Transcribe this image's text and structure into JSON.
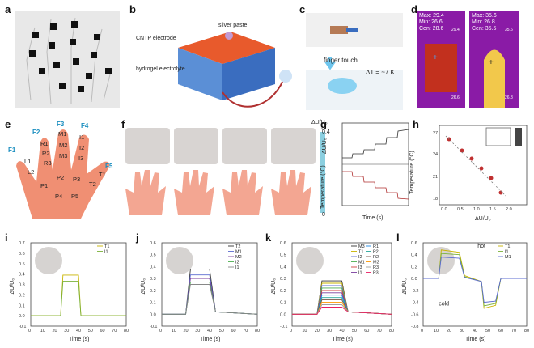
{
  "panels": [
    "a",
    "b",
    "c",
    "d",
    "e",
    "f",
    "g",
    "h",
    "i",
    "j",
    "k",
    "l"
  ],
  "b": {
    "label1": "silver paste",
    "label2": "CNTP electrode",
    "label3": "hydrogel electrolyte"
  },
  "c": {
    "label1": "finger touch",
    "label2": "ΔT = ~7 K"
  },
  "d": {
    "left": {
      "max": "Max: 29.4",
      "min": "Min: 26.6",
      "cen": "Cen: 28.6",
      "scale_top": "29.4",
      "scale_bot": "26.6"
    },
    "right": {
      "max": "Max: 35.6",
      "min": "Min: 26.8",
      "cen": "Cen: 35.5",
      "scale_top": "35.6",
      "scale_bot": "26.8"
    }
  },
  "e": {
    "fingers": [
      "F1",
      "F2",
      "F3",
      "F4",
      "F5"
    ],
    "points": [
      "R1",
      "R2",
      "R3",
      "M1",
      "M2",
      "M3",
      "I1",
      "I2",
      "I3",
      "L1",
      "L2",
      "P1",
      "P2",
      "P3",
      "P4",
      "P5",
      "T1",
      "T2"
    ]
  },
  "f": {
    "colorbar_title": "ΔU/U₀",
    "colorbar_top": "0.4",
    "colorbar_bot": "0"
  },
  "g": {
    "ylabel_top": "ΔU/U₀",
    "ylabel_bot": "Temperature (°C)",
    "xlabel": "Time (s)",
    "xticks": [
      "0",
      "500",
      "1000",
      "1500",
      "2000",
      "2500",
      "3000"
    ]
  },
  "h": {
    "ylabel": "Temperature (°C)",
    "xlabel": "ΔU/U₀",
    "yticks": [
      "27",
      "24",
      "21",
      "18"
    ],
    "xticks": [
      "0.0",
      "0.5",
      "1.0",
      "1.5",
      "2.0"
    ]
  },
  "chart_data": [
    {
      "type": "line",
      "panel": "i",
      "xlabel": "Time (s)",
      "ylabel": "ΔU/U₀",
      "xlim": [
        0,
        80
      ],
      "ylim": [
        -0.1,
        0.7
      ],
      "xticks": [
        "0",
        "10",
        "20",
        "30",
        "40",
        "50",
        "60",
        "70",
        "80"
      ],
      "yticks": [
        "-0.1",
        "0.0",
        "0.1",
        "0.2",
        "0.3",
        "0.4",
        "0.5",
        "0.6",
        "0.7"
      ],
      "series": [
        {
          "name": "T1",
          "color": "#c9b400",
          "x": [
            0,
            25,
            27,
            40,
            42,
            80
          ],
          "y": [
            0,
            0,
            0.39,
            0.39,
            0,
            0
          ]
        },
        {
          "name": "I1",
          "color": "#7bb23a",
          "x": [
            0,
            25,
            27,
            40,
            42,
            80
          ],
          "y": [
            0,
            0,
            0.33,
            0.33,
            0,
            0
          ]
        }
      ]
    },
    {
      "type": "line",
      "panel": "j",
      "xlabel": "Time (s)",
      "ylabel": "ΔU/U₀",
      "xlim": [
        0,
        80
      ],
      "ylim": [
        -0.1,
        0.6
      ],
      "xticks": [
        "0",
        "10",
        "20",
        "30",
        "40",
        "50",
        "60",
        "70",
        "80"
      ],
      "yticks": [
        "-0.1",
        "0.0",
        "0.1",
        "0.2",
        "0.3",
        "0.4",
        "0.5",
        "0.6"
      ],
      "series": [
        {
          "name": "T2",
          "color": "#333333",
          "x": [
            0,
            20,
            24,
            40,
            45,
            80
          ],
          "y": [
            0,
            0,
            0.38,
            0.38,
            0.02,
            0
          ]
        },
        {
          "name": "M1",
          "color": "#5b6bd0",
          "x": [
            0,
            20,
            24,
            40,
            45,
            80
          ],
          "y": [
            0,
            0,
            0.33,
            0.33,
            0.02,
            0
          ]
        },
        {
          "name": "M2",
          "color": "#7a3e9d",
          "x": [
            0,
            20,
            24,
            40,
            45,
            80
          ],
          "y": [
            0,
            0,
            0.3,
            0.3,
            0.02,
            0
          ]
        },
        {
          "name": "I2",
          "color": "#4caf50",
          "x": [
            0,
            20,
            24,
            40,
            45,
            80
          ],
          "y": [
            0,
            0,
            0.27,
            0.27,
            0.02,
            0
          ]
        },
        {
          "name": "I1",
          "color": "#888888",
          "x": [
            0,
            20,
            24,
            40,
            45,
            80
          ],
          "y": [
            0,
            0,
            0.25,
            0.25,
            0.02,
            0
          ]
        }
      ]
    },
    {
      "type": "line",
      "panel": "k",
      "xlabel": "Time (s)",
      "ylabel": "ΔU/U₀",
      "xlim": [
        0,
        80
      ],
      "ylim": [
        -0.1,
        0.6
      ],
      "xticks": [
        "0",
        "10",
        "20",
        "30",
        "40",
        "50",
        "60",
        "70",
        "80"
      ],
      "yticks": [
        "-0.1",
        "0.0",
        "0.1",
        "0.2",
        "0.3",
        "0.4",
        "0.5",
        "0.6"
      ],
      "series": [
        {
          "name": "M3",
          "color": "#333333",
          "x": [
            0,
            20,
            24,
            40,
            45,
            80
          ],
          "y": [
            0,
            0,
            0.28,
            0.28,
            0.02,
            0
          ]
        },
        {
          "name": "T1",
          "color": "#c9b400",
          "x": [
            0,
            20,
            24,
            40,
            45,
            80
          ],
          "y": [
            0,
            0,
            0.26,
            0.26,
            0.02,
            0
          ]
        },
        {
          "name": "I2",
          "color": "#5b6bd0",
          "x": [
            0,
            20,
            24,
            40,
            45,
            80
          ],
          "y": [
            0,
            0,
            0.24,
            0.24,
            0.02,
            0
          ]
        },
        {
          "name": "M1",
          "color": "#4caf50",
          "x": [
            0,
            20,
            24,
            40,
            45,
            80
          ],
          "y": [
            0,
            0,
            0.22,
            0.22,
            0.02,
            0
          ]
        },
        {
          "name": "I3",
          "color": "#d04040",
          "x": [
            0,
            20,
            24,
            40,
            45,
            80
          ],
          "y": [
            0,
            0,
            0.2,
            0.2,
            0.02,
            0
          ]
        },
        {
          "name": "I1",
          "color": "#7a3e9d",
          "x": [
            0,
            20,
            24,
            40,
            45,
            80
          ],
          "y": [
            0,
            0,
            0.18,
            0.18,
            0.02,
            0
          ]
        },
        {
          "name": "R1",
          "color": "#1e88e5",
          "x": [
            0,
            20,
            24,
            40,
            45,
            80
          ],
          "y": [
            0,
            0,
            0.16,
            0.16,
            0.02,
            0
          ]
        },
        {
          "name": "P2",
          "color": "#26a69a",
          "x": [
            0,
            20,
            24,
            40,
            45,
            80
          ],
          "y": [
            0,
            0,
            0.14,
            0.14,
            0.02,
            0
          ]
        },
        {
          "name": "R2",
          "color": "#795548",
          "x": [
            0,
            20,
            24,
            40,
            45,
            80
          ],
          "y": [
            0,
            0,
            0.12,
            0.12,
            0.02,
            0
          ]
        },
        {
          "name": "M2",
          "color": "#ff9800",
          "x": [
            0,
            20,
            24,
            40,
            45,
            80
          ],
          "y": [
            0,
            0,
            0.1,
            0.1,
            0.02,
            0
          ]
        },
        {
          "name": "R3",
          "color": "#9e9e9e",
          "x": [
            0,
            20,
            24,
            40,
            45,
            80
          ],
          "y": [
            0,
            0,
            0.08,
            0.08,
            0.02,
            0
          ]
        },
        {
          "name": "P3",
          "color": "#e91e63",
          "x": [
            0,
            20,
            24,
            40,
            45,
            80
          ],
          "y": [
            0,
            0,
            0.06,
            0.06,
            0.02,
            0
          ]
        }
      ]
    },
    {
      "type": "line",
      "panel": "l",
      "xlabel": "Time (s)",
      "ylabel": "ΔU/U₀",
      "xlim": [
        0,
        80
      ],
      "ylim": [
        -0.8,
        0.6
      ],
      "xticks": [
        "0",
        "10",
        "20",
        "30",
        "40",
        "50",
        "60",
        "70",
        "80"
      ],
      "yticks": [
        "-0.8",
        "-0.6",
        "-0.4",
        "-0.2",
        "0.0",
        "0.2",
        "0.4",
        "0.6"
      ],
      "series": [
        {
          "name": "T1",
          "color": "#c9b400",
          "x": [
            0,
            12,
            14,
            28,
            32,
            45,
            47,
            56,
            60,
            80
          ],
          "y": [
            0,
            0,
            0.48,
            0.44,
            0.05,
            -0.05,
            -0.5,
            -0.45,
            0,
            0
          ]
        },
        {
          "name": "I1",
          "color": "#7bb23a",
          "x": [
            0,
            12,
            14,
            28,
            32,
            45,
            47,
            56,
            60,
            80
          ],
          "y": [
            0,
            0,
            0.42,
            0.4,
            0.03,
            -0.05,
            -0.46,
            -0.42,
            0,
            0
          ]
        },
        {
          "name": "M1",
          "color": "#5b6bd0",
          "x": [
            0,
            12,
            14,
            28,
            32,
            45,
            47,
            56,
            60,
            80
          ],
          "y": [
            0,
            0,
            0.36,
            0.34,
            0.02,
            -0.05,
            -0.4,
            -0.38,
            0,
            0
          ]
        }
      ],
      "annotations": [
        "hot",
        "cold"
      ]
    }
  ]
}
